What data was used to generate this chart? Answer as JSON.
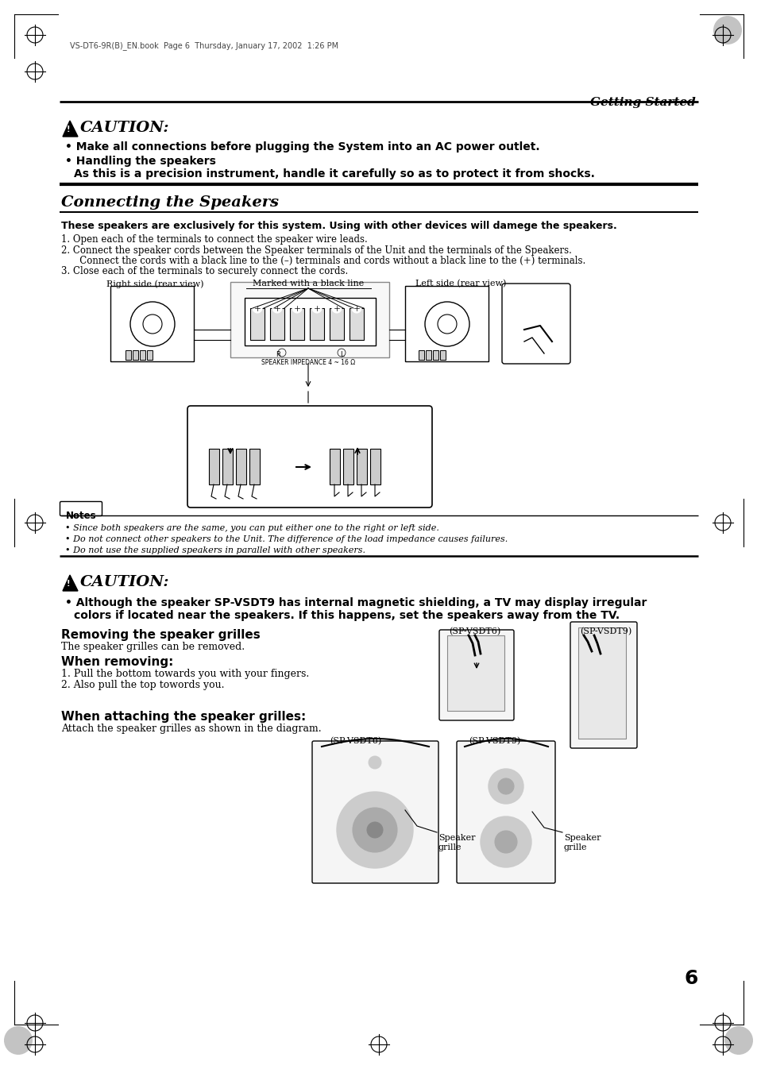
{
  "page_header_text": "VS-DT6-9R(B)_EN.book  Page 6  Thursday, January 17, 2002  1:26 PM",
  "section_header": "Getting Started",
  "caution1_title": "CAUTION:",
  "caution1_b1": "Make all connections before plugging the System into an AC power outlet.",
  "caution1_b2a": "Handling the speakers",
  "caution1_b2b": "As this is a precision instrument, handle it carefully so as to protect it from shocks.",
  "connecting_title": "Connecting the Speakers",
  "connecting_bold": "These speakers are exclusively for this system. Using with other devices will damege the speakers.",
  "step1": "1. Open each of the terminals to connect the speaker wire leads.",
  "step2a": "2. Connect the speaker cords between the Speaker terminals of the Unit and the terminals of the Speakers.",
  "step2b": "   Connect the cords with a black line to the (–) terminals and cords without a black line to the (+) terminals.",
  "step3": "3. Close each of the terminals to securely connect the cords.",
  "diag_label1": "Right side (rear view)",
  "diag_label2": "Marked with a black line",
  "diag_label3": "Left side (rear view)",
  "diag_label4": "SPEAKER IMPEDANCE 4 ~ 16 Ω",
  "notes_title": "Notes",
  "note1": "Since both speakers are the same, you can put either one to the right or left side.",
  "note2": "Do not connect other speakers to the Unit. The difference of the load impedance causes failures.",
  "note3": "Do not use the supplied speakers in parallel with other speakers.",
  "caution2_title": "CAUTION:",
  "caution2_b1a": "Although the speaker SP-VSDT9 has internal magnetic shielding, a TV may display irregular",
  "caution2_b1b": "colors if located near the speakers. If this happens, set the speakers away from the TV.",
  "removing_title": "Removing the speaker grilles",
  "removing_text": "The speaker grilles can be removed.",
  "when_removing_title": "When removing:",
  "wr_step1": "1. Pull the bottom towards you with your fingers.",
  "wr_step2": "2. Also pull the top towords you.",
  "when_attaching_title": "When attaching the speaker grilles:",
  "wa_text": "Attach the speaker grilles as shown in the diagram.",
  "sp1_label": "(SP-VSDT6)",
  "sp2_label": "(SP-VSDT9)",
  "sp3_label": "(SP-VSDT6)",
  "sp4_label": "(SP-VSDT9)",
  "speaker_grille": "Speaker\ngrille",
  "page_number": "6",
  "bg": "#ffffff"
}
